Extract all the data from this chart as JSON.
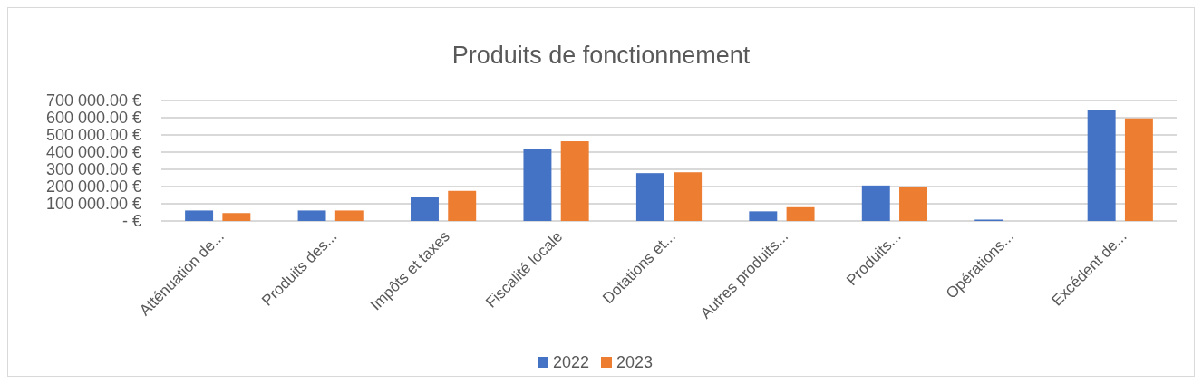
{
  "chart_data": {
    "type": "bar",
    "title": "Produits de fonctionnement",
    "categories": [
      "Atténuation de...",
      "Produits des...",
      "Impôts et taxes",
      "Fiscalité locale",
      "Dotations et...",
      "Autres produits...",
      "Produits...",
      "Opérations...",
      "Excédent de..."
    ],
    "series": [
      {
        "name": "2022",
        "color": "#4472c4",
        "values": [
          61000,
          61000,
          142000,
          420000,
          278000,
          56000,
          206000,
          8000,
          644000
        ]
      },
      {
        "name": "2023",
        "color": "#ed7d31",
        "values": [
          46000,
          61000,
          175000,
          463000,
          283000,
          80000,
          195000,
          0,
          596000
        ]
      }
    ],
    "ylim": [
      0,
      700000
    ],
    "yticks": [
      {
        "value": 0,
        "label": "-   €"
      },
      {
        "value": 100000,
        "label": "100 000.00 €"
      },
      {
        "value": 200000,
        "label": "200 000.00 €"
      },
      {
        "value": 300000,
        "label": "300 000.00 €"
      },
      {
        "value": 400000,
        "label": "400 000.00 €"
      },
      {
        "value": 500000,
        "label": "500 000.00 €"
      },
      {
        "value": 600000,
        "label": "600 000.00 €"
      },
      {
        "value": 700000,
        "label": "700 000.00 €"
      }
    ],
    "grid": "y",
    "legend": "bottom"
  }
}
